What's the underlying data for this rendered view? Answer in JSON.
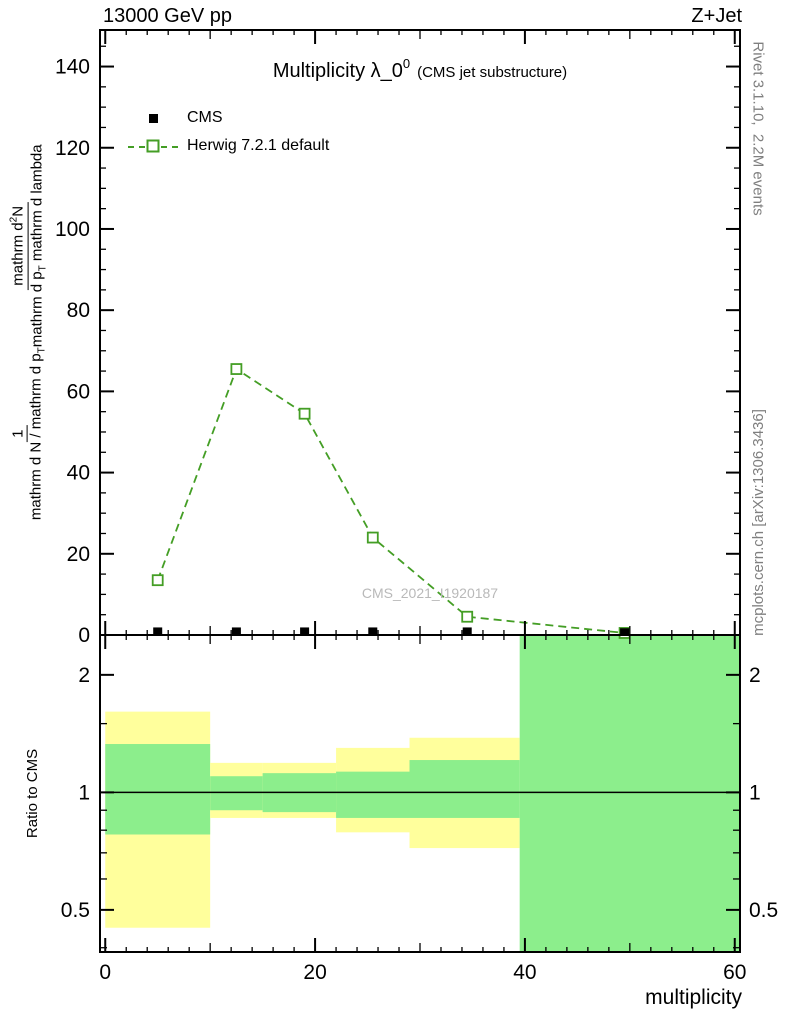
{
  "header": {
    "left": "13000 GeV pp",
    "right": "Z+Jet"
  },
  "title": {
    "text": "Multiplicity λ_0",
    "sup": "0",
    "suffix": "(CMS jet substructure)"
  },
  "legend": {
    "items": [
      {
        "label": "CMS"
      },
      {
        "label": "Herwig 7.2.1 default"
      }
    ]
  },
  "watermark": "CMS_2021_I1920187",
  "right_margin": {
    "rivet": "Rivet 3.1.10,  2.2M events",
    "mcplots": "mcplots.cern.ch [arXiv:1306.3436]"
  },
  "xlabel": "multiplicity",
  "ylabel": {
    "frac1": {
      "num": "1",
      "den": "mathrm d N / mathrm d p",
      "den_sub": "T"
    },
    "frac2": {
      "num_a": "mathrm d",
      "num_sup": "2",
      "num_b": "N",
      "den_a": "mathrm d p",
      "den_sub": "T",
      "den_b": " mathrm d lambda"
    }
  },
  "chart_data": {
    "type": "line",
    "title": "Multiplicity λ_0^0 (CMS jet substructure)",
    "xlabel": "multiplicity",
    "ylabel": "1/(dN/dp_T) d²N/(dp_T dλ)",
    "xlim": [
      -0.5,
      60.5
    ],
    "xticks": [
      0,
      20,
      40,
      60
    ],
    "xticks_medium": [
      10,
      30,
      50
    ],
    "xtick_minor_step": 2,
    "main_panel": {
      "ylim": [
        0,
        149
      ],
      "yticks": [
        0,
        20,
        40,
        60,
        80,
        100,
        120,
        140
      ],
      "ytick_minor_step": 5,
      "series": [
        {
          "name": "CMS",
          "marker": "filled-square",
          "color": "#000000",
          "x": [
            5,
            12.5,
            19,
            25.5,
            34.5,
            49.5
          ],
          "y": [
            1.0,
            1.0,
            1.0,
            1.0,
            1.0,
            0.8
          ]
        },
        {
          "name": "Herwig 7.2.1 default",
          "marker": "open-square",
          "line": "dashed",
          "color": "#449e25",
          "x": [
            5,
            12.5,
            19,
            25.5,
            34.5,
            49.5
          ],
          "y": [
            13.5,
            65.5,
            54.5,
            24.0,
            4.5,
            0.5
          ]
        }
      ]
    },
    "ratio_panel": {
      "label": "Ratio to CMS",
      "scale": "log",
      "ylim": [
        0.39,
        2.53
      ],
      "yticks": [
        0.5,
        1,
        2
      ],
      "yticks_minor": [
        0.4,
        0.6,
        0.7,
        0.8,
        0.9,
        1.5
      ],
      "unity_line": 1,
      "bands": [
        {
          "x0": 0,
          "x1": 10,
          "yellow": [
            0.45,
            1.61
          ],
          "green": [
            0.78,
            1.33
          ]
        },
        {
          "x0": 10,
          "x1": 15,
          "yellow": [
            0.86,
            1.19
          ],
          "green": [
            0.9,
            1.1
          ]
        },
        {
          "x0": 15,
          "x1": 22,
          "yellow": [
            0.86,
            1.19
          ],
          "green": [
            0.89,
            1.12
          ]
        },
        {
          "x0": 22,
          "x1": 29,
          "yellow": [
            0.79,
            1.3
          ],
          "green": [
            0.86,
            1.13
          ]
        },
        {
          "x0": 29,
          "x1": 39.5,
          "yellow": [
            0.72,
            1.38
          ],
          "green": [
            0.86,
            1.21
          ]
        },
        {
          "x0": 39.5,
          "x1": 60.5,
          "yellow": null,
          "green": [
            0.39,
            2.53
          ]
        }
      ]
    },
    "colors": {
      "yellow_band": "#ffff9c",
      "green_band": "#8cee8c",
      "mc_line": "#449e25",
      "data": "#000000",
      "watermark": "#b9b9b9",
      "margin_text": "#7f7f7f"
    }
  }
}
